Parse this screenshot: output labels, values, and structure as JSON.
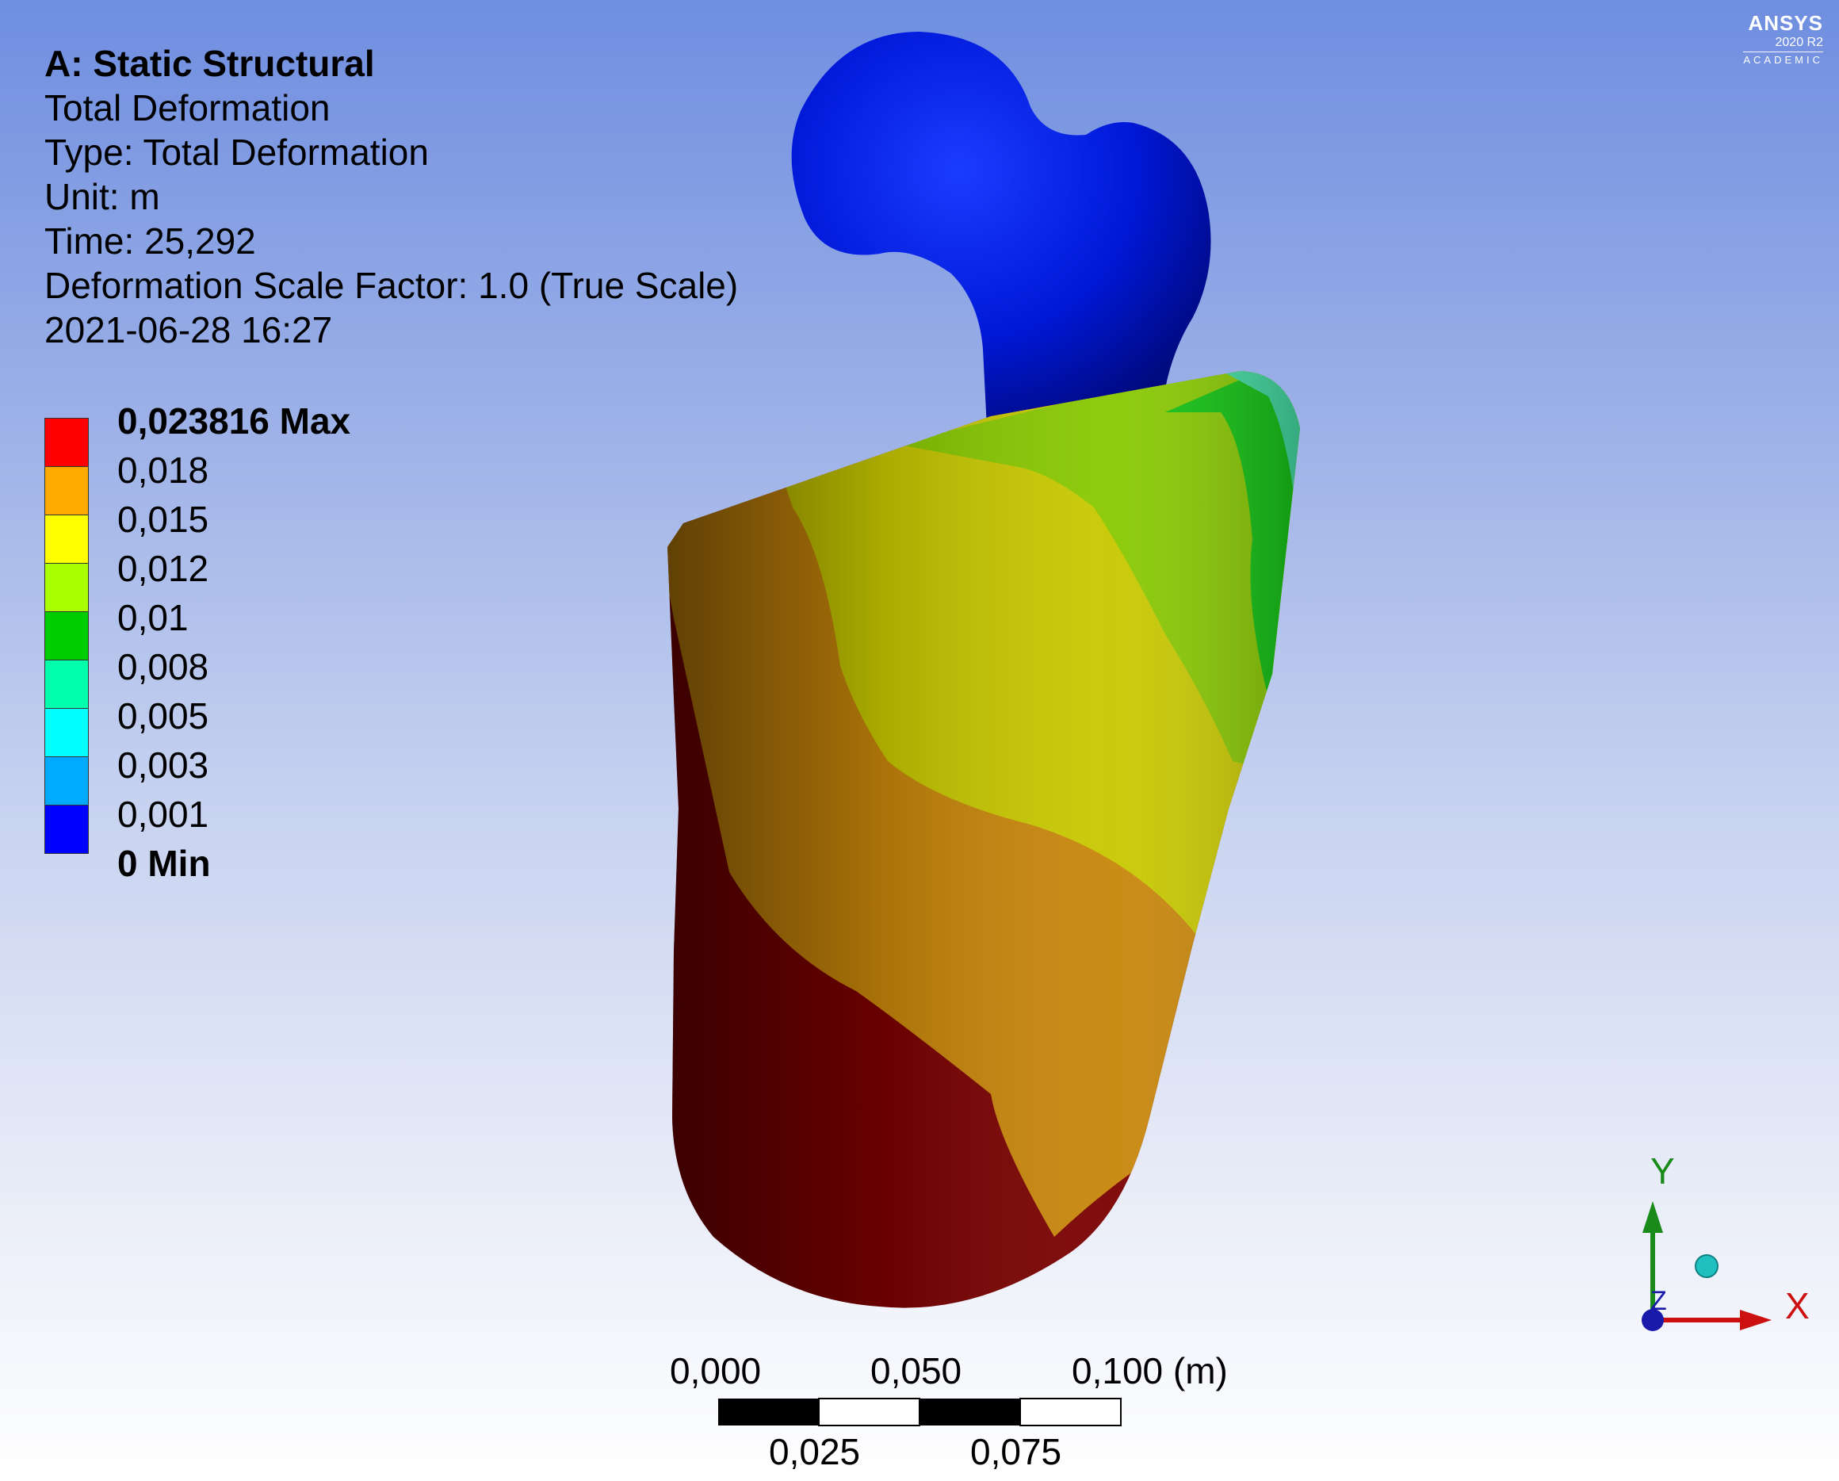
{
  "info": {
    "title": "A: Static Structural",
    "result": "Total Deformation",
    "type": "Type: Total Deformation",
    "unit": "Unit: m",
    "time": "Time: 25,292",
    "scale": "Deformation Scale Factor: 1.0 (True Scale)",
    "date": "2021-06-28 16:27"
  },
  "legend": {
    "labels": [
      "0,023816 Max",
      "0,018",
      "0,015",
      "0,012",
      "0,01",
      "0,008",
      "0,005",
      "0,003",
      "0,001",
      "0 Min"
    ],
    "colors": [
      "#ff0000",
      "#ffaa00",
      "#ffff00",
      "#aaff00",
      "#00cc00",
      "#00ffaa",
      "#00ffff",
      "#00aaff",
      "#0000ff"
    ]
  },
  "logo": {
    "name": "ANSYS",
    "version": "2020 R2",
    "edition": "ACADEMIC"
  },
  "scalebar": {
    "top_labels": [
      "0,000",
      "0,050",
      "0,100 (m)"
    ],
    "bottom_labels": [
      "0,025",
      "0,075"
    ]
  },
  "triad": {
    "y": "Y",
    "x": "X",
    "z": "Z"
  }
}
